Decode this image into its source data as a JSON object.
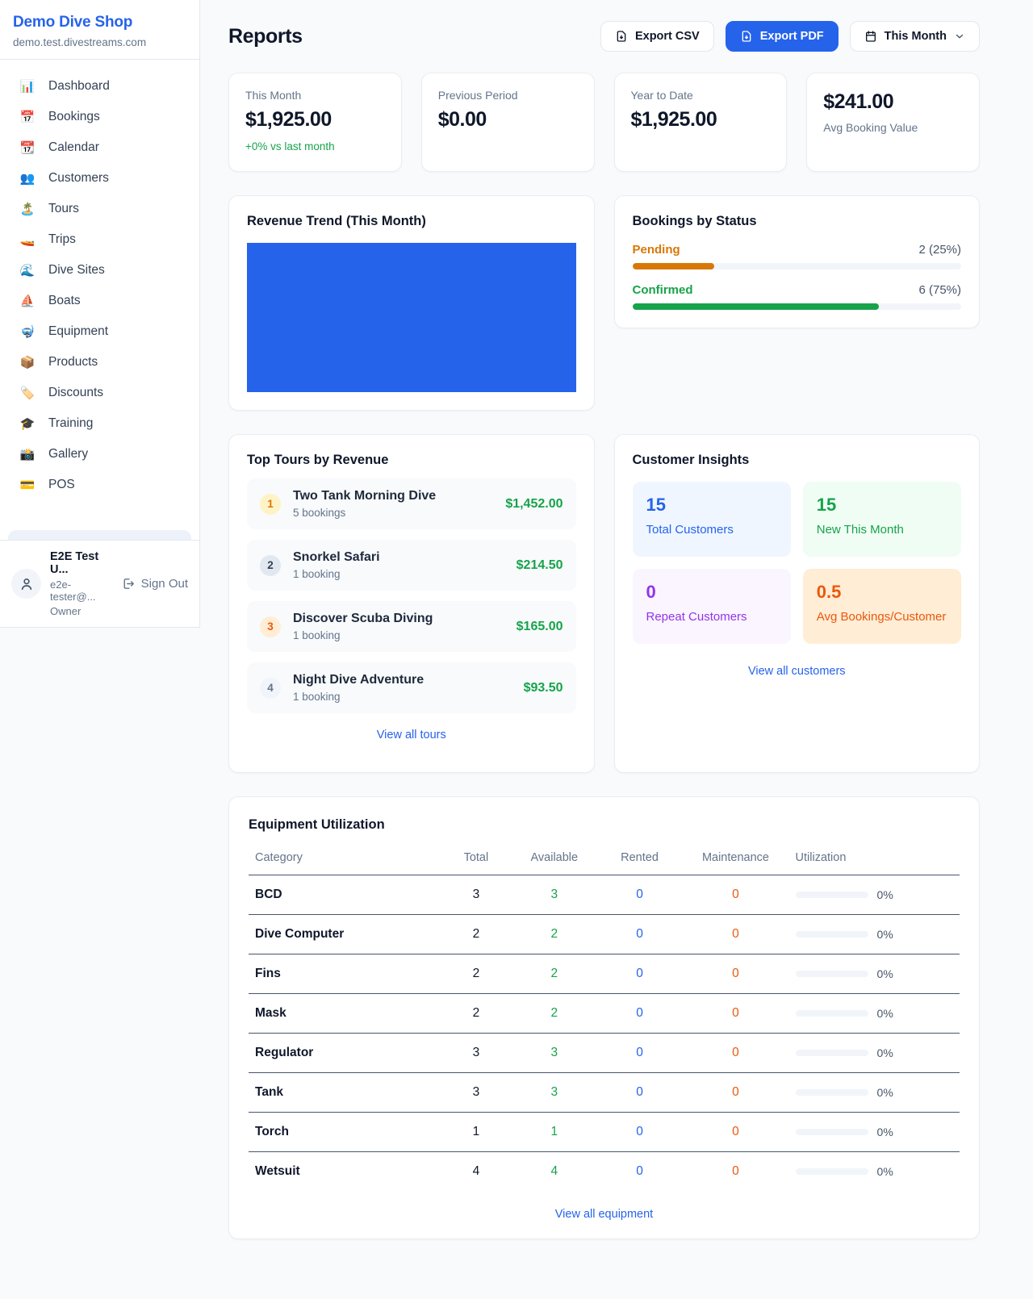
{
  "colors": {
    "accent_blue": "#2563eb",
    "success_green": "#16a34a",
    "pending_orange": "#d97706",
    "maintenance_orange": "#ea580c",
    "chart_bar": "#2563eb"
  },
  "sidebar": {
    "brand": {
      "name": "Demo Dive Shop",
      "domain": "demo.test.divestreams.com"
    },
    "items": [
      {
        "icon": "📊",
        "label": "Dashboard"
      },
      {
        "icon": "📅",
        "label": "Bookings"
      },
      {
        "icon": "📆",
        "label": "Calendar"
      },
      {
        "icon": "👥",
        "label": "Customers"
      },
      {
        "icon": "🏝️",
        "label": "Tours"
      },
      {
        "icon": "🚤",
        "label": "Trips"
      },
      {
        "icon": "🌊",
        "label": "Dive Sites"
      },
      {
        "icon": "⛵",
        "label": "Boats"
      },
      {
        "icon": "🤿",
        "label": "Equipment"
      },
      {
        "icon": "📦",
        "label": "Products"
      },
      {
        "icon": "🏷️",
        "label": "Discounts"
      },
      {
        "icon": "🎓",
        "label": "Training"
      },
      {
        "icon": "📸",
        "label": "Gallery"
      },
      {
        "icon": "💳",
        "label": "POS"
      }
    ],
    "user": {
      "name": "E2E Test U...",
      "email": "e2e-tester@...",
      "role": "Owner",
      "sign_out": "Sign Out"
    }
  },
  "header": {
    "title": "Reports",
    "export_csv_label": "Export CSV",
    "export_pdf_label": "Export PDF",
    "period_label": "This Month"
  },
  "stats": [
    {
      "label": "This Month",
      "value": "$1,925.00",
      "delta": "+0% vs last month"
    },
    {
      "label": "Previous Period",
      "value": "$0.00"
    },
    {
      "label": "Year to Date",
      "value": "$1,925.00"
    },
    {
      "label": "Avg Booking Value",
      "value": "$241.00"
    }
  ],
  "revenue_trend": {
    "title": "Revenue Trend (This Month)"
  },
  "chart_data": {
    "type": "bar",
    "title": "Revenue Trend (This Month)",
    "categories": [
      "This Month"
    ],
    "values": [
      1925
    ],
    "bar_color": "#2563eb",
    "xlabel": "",
    "ylabel": "",
    "note": "single solid full-area bar, no axes, ticks or labels visible"
  },
  "bookings_by_status": {
    "title": "Bookings by Status",
    "rows": [
      {
        "label": "Pending",
        "value": "2 (25%)",
        "pct": "25%",
        "color": "#d97706"
      },
      {
        "label": "Confirmed",
        "value": "6 (75%)",
        "pct": "75%",
        "color": "#16a34a"
      }
    ]
  },
  "top_tours": {
    "title": "Top Tours by Revenue",
    "items": [
      {
        "rank": "1",
        "name": "Two Tank Morning Dive",
        "bookings": "5 bookings",
        "revenue": "$1,452.00"
      },
      {
        "rank": "2",
        "name": "Snorkel Safari",
        "bookings": "1 booking",
        "revenue": "$214.50"
      },
      {
        "rank": "3",
        "name": "Discover Scuba Diving",
        "bookings": "1 booking",
        "revenue": "$165.00"
      },
      {
        "rank": "4",
        "name": "Night Dive Adventure",
        "bookings": "1 booking",
        "revenue": "$93.50"
      }
    ],
    "view_all": "View all tours"
  },
  "customer_insights": {
    "title": "Customer Insights",
    "tiles": [
      {
        "value": "15",
        "label": "Total Customers",
        "bg": "#eff6ff",
        "fg": "#2563eb"
      },
      {
        "value": "15",
        "label": "New This Month",
        "bg": "#f0fdf4",
        "fg": "#16a34a"
      },
      {
        "value": "0",
        "label": "Repeat Customers",
        "bg": "#faf5ff",
        "fg": "#9333ea"
      },
      {
        "value": "0.5",
        "label": "Avg Bookings/Customer",
        "bg": "#ffedd5",
        "fg": "#ea580c"
      }
    ],
    "view_all": "View all customers"
  },
  "equipment": {
    "title": "Equipment Utilization",
    "columns": [
      "Category",
      "Total",
      "Available",
      "Rented",
      "Maintenance",
      "Utilization"
    ],
    "rows": [
      {
        "category": "BCD",
        "total": "3",
        "available": "3",
        "rented": "0",
        "maintenance": "0",
        "utilization": "0%",
        "util_pct": "0%"
      },
      {
        "category": "Dive Computer",
        "total": "2",
        "available": "2",
        "rented": "0",
        "maintenance": "0",
        "utilization": "0%",
        "util_pct": "0%"
      },
      {
        "category": "Fins",
        "total": "2",
        "available": "2",
        "rented": "0",
        "maintenance": "0",
        "utilization": "0%",
        "util_pct": "0%"
      },
      {
        "category": "Mask",
        "total": "2",
        "available": "2",
        "rented": "0",
        "maintenance": "0",
        "utilization": "0%",
        "util_pct": "0%"
      },
      {
        "category": "Regulator",
        "total": "3",
        "available": "3",
        "rented": "0",
        "maintenance": "0",
        "utilization": "0%",
        "util_pct": "0%"
      },
      {
        "category": "Tank",
        "total": "3",
        "available": "3",
        "rented": "0",
        "maintenance": "0",
        "utilization": "0%",
        "util_pct": "0%"
      },
      {
        "category": "Torch",
        "total": "1",
        "available": "1",
        "rented": "0",
        "maintenance": "0",
        "utilization": "0%",
        "util_pct": "0%"
      },
      {
        "category": "Wetsuit",
        "total": "4",
        "available": "4",
        "rented": "0",
        "maintenance": "0",
        "utilization": "0%",
        "util_pct": "0%"
      }
    ],
    "view_all": "View all equipment"
  }
}
